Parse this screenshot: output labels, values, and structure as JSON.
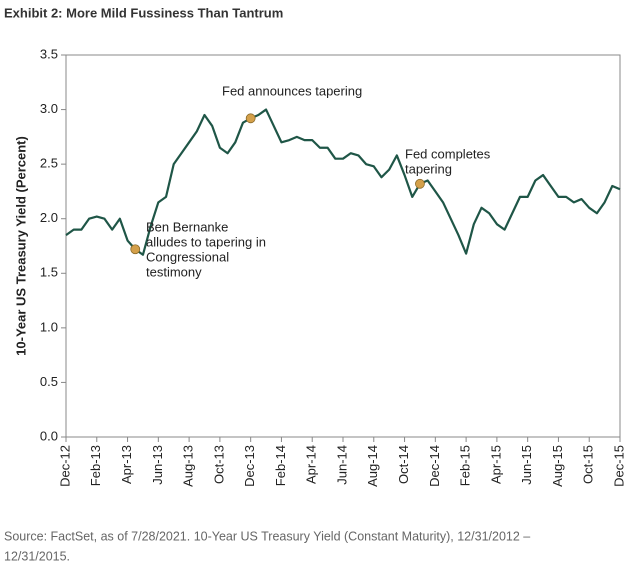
{
  "chart_data": {
    "type": "line",
    "title": "Exhibit 2: More Mild Fussiness Than Tantrum",
    "y_label": "10-Year US Treasury Yield (Percent)",
    "source": [
      "Source: FactSet, as of 7/28/2021. 10-Year US Treasury Yield (Constant Maturity), 12/31/2012 –",
      "12/31/2015."
    ],
    "categories": [
      "Dec-12",
      null,
      null,
      null,
      "Feb-13",
      null,
      null,
      null,
      "Apr-13",
      null,
      null,
      null,
      "Jun-13",
      null,
      null,
      null,
      "Aug-13",
      null,
      null,
      null,
      "Oct-13",
      null,
      null,
      null,
      "Dec-13",
      null,
      null,
      null,
      "Feb-14",
      null,
      null,
      null,
      "Apr-14",
      null,
      null,
      null,
      "Jun-14",
      null,
      null,
      null,
      "Aug-14",
      null,
      null,
      null,
      "Oct-14",
      null,
      null,
      null,
      "Dec-14",
      null,
      null,
      null,
      "Feb-15",
      null,
      null,
      null,
      "Apr-15",
      null,
      null,
      null,
      "Jun-15",
      null,
      null,
      null,
      "Aug-15",
      null,
      null,
      null,
      "Oct-15",
      null,
      null,
      null,
      "Dec-15"
    ],
    "series": [
      {
        "name": "10-Year US Treasury Yield",
        "color": "#1f5647",
        "values": [
          1.85,
          1.9,
          1.9,
          2.0,
          2.02,
          2.0,
          1.9,
          2.0,
          1.8,
          1.72,
          1.67,
          1.93,
          2.15,
          2.2,
          2.5,
          2.6,
          2.7,
          2.8,
          2.95,
          2.85,
          2.65,
          2.6,
          2.7,
          2.88,
          2.92,
          2.95,
          3.0,
          2.85,
          2.7,
          2.72,
          2.75,
          2.72,
          2.72,
          2.65,
          2.65,
          2.55,
          2.55,
          2.6,
          2.58,
          2.5,
          2.48,
          2.38,
          2.45,
          2.58,
          2.4,
          2.2,
          2.32,
          2.35,
          2.25,
          2.15,
          2.0,
          1.85,
          1.68,
          1.95,
          2.1,
          2.05,
          1.95,
          1.9,
          2.05,
          2.2,
          2.2,
          2.35,
          2.4,
          2.3,
          2.2,
          2.2,
          2.15,
          2.18,
          2.1,
          2.05,
          2.15,
          2.3,
          2.27
        ]
      }
    ],
    "ylim": [
      0,
      3.5
    ],
    "yticks": [
      {
        "value": 0,
        "label": "0.0"
      },
      0.5,
      {
        "value": 1,
        "label": "1.0"
      },
      1.5,
      {
        "value": 2,
        "label": "2.0"
      },
      2.5,
      {
        "value": 3,
        "label": "3.0"
      },
      3.5
    ],
    "annotations": [
      {
        "lines": [
          "Ben Bernanke",
          "alludes to tapering in",
          "Congressional",
          "testimony"
        ],
        "marker_color": "#d4a04a"
      },
      {
        "lines": [
          "Fed announces tapering"
        ],
        "marker_color": "#d4a04a"
      },
      {
        "lines": [
          "Fed completes",
          "tapering"
        ],
        "marker_color": "#d4a04a"
      }
    ]
  }
}
